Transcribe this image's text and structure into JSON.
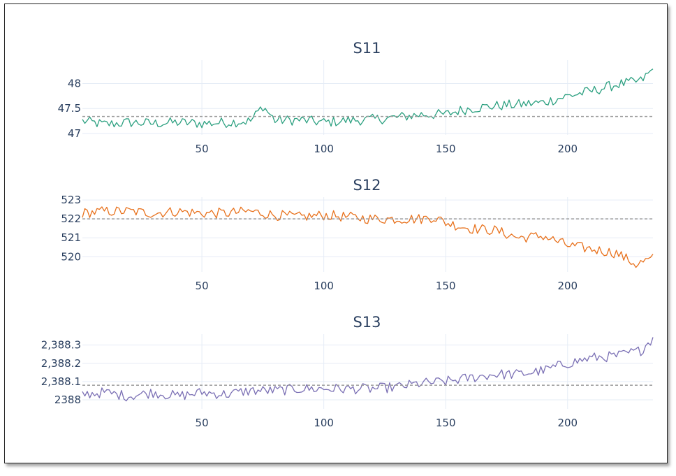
{
  "colors": {
    "S11": "#2ca080",
    "S12": "#e8711c",
    "S13": "#7a6fb4",
    "grid": "#e5ecf6",
    "refline": "#9a9a9a",
    "text": "#2a3f5f"
  },
  "chart_data": [
    {
      "type": "line",
      "title": "S11",
      "xlabel": "",
      "ylabel": "",
      "xlim": [
        1,
        235
      ],
      "ylim": [
        46.97,
        48.47
      ],
      "x_ticks": [
        50,
        100,
        150,
        200
      ],
      "x_tick_labels": [
        "50",
        "100",
        "150",
        "200"
      ],
      "y_ticks": [
        47,
        47.5,
        48
      ],
      "y_tick_labels": [
        "47",
        "47.5",
        "48"
      ],
      "reference_line": 47.34,
      "grid": true,
      "series": [
        {
          "x": [
            1,
            10,
            20,
            30,
            40,
            50,
            60,
            70,
            75,
            80,
            90,
            100,
            110,
            120,
            130,
            140,
            150,
            155,
            160,
            170,
            180,
            190,
            200,
            210,
            220,
            230,
            235
          ],
          "values": [
            47.25,
            47.18,
            47.22,
            47.2,
            47.22,
            47.2,
            47.22,
            47.25,
            47.55,
            47.26,
            47.27,
            47.22,
            47.26,
            47.28,
            47.32,
            47.38,
            47.38,
            47.45,
            47.5,
            47.55,
            47.58,
            47.62,
            47.75,
            47.85,
            47.98,
            48.05,
            48.28
          ]
        }
      ]
    },
    {
      "type": "line",
      "title": "S12",
      "xlabel": "",
      "ylabel": "",
      "xlim": [
        1,
        235
      ],
      "ylim": [
        519.2,
        523.15
      ],
      "x_ticks": [
        50,
        100,
        150,
        200
      ],
      "x_tick_labels": [
        "50",
        "100",
        "150",
        "200"
      ],
      "y_ticks": [
        520,
        521,
        522,
        523
      ],
      "y_tick_labels": [
        "520",
        "521",
        "522",
        "523"
      ],
      "reference_line": 522.0,
      "grid": true,
      "series": [
        {
          "x": [
            1,
            10,
            20,
            30,
            40,
            50,
            60,
            70,
            80,
            90,
            100,
            110,
            120,
            130,
            140,
            145,
            150,
            160,
            170,
            180,
            190,
            200,
            210,
            220,
            228,
            235
          ],
          "values": [
            522.3,
            522.4,
            522.4,
            522.3,
            522.4,
            522.3,
            522.3,
            522.4,
            522.2,
            522.1,
            522.2,
            522.1,
            522.0,
            522.0,
            522.0,
            522.1,
            521.8,
            521.5,
            521.4,
            521.0,
            521.1,
            520.6,
            520.4,
            520.2,
            519.6,
            519.9
          ]
        }
      ]
    },
    {
      "type": "line",
      "title": "S13",
      "xlabel": "",
      "ylabel": "",
      "xlim": [
        1,
        235
      ],
      "ylim": [
        2387.95,
        2388.36
      ],
      "x_ticks": [
        50,
        100,
        150,
        200
      ],
      "x_tick_labels": [
        "50",
        "100",
        "150",
        "200"
      ],
      "y_ticks": [
        2388.0,
        2388.1,
        2388.2,
        2388.3
      ],
      "y_tick_labels": [
        "2388",
        "2,388.1",
        "2,388.2",
        "2,388.3"
      ],
      "reference_line": 2388.08,
      "grid": true,
      "series": [
        {
          "x": [
            1,
            10,
            20,
            30,
            40,
            50,
            60,
            70,
            80,
            90,
            100,
            110,
            120,
            130,
            140,
            150,
            160,
            170,
            180,
            190,
            200,
            210,
            220,
            230,
            235
          ],
          "values": [
            2388.03,
            2388.04,
            2388.02,
            2388.04,
            2388.02,
            2388.04,
            2388.03,
            2388.05,
            2388.05,
            2388.06,
            2388.06,
            2388.06,
            2388.06,
            2388.07,
            2388.09,
            2388.1,
            2388.12,
            2388.14,
            2388.14,
            2388.16,
            2388.2,
            2388.23,
            2388.24,
            2388.27,
            2388.34
          ]
        }
      ]
    }
  ]
}
